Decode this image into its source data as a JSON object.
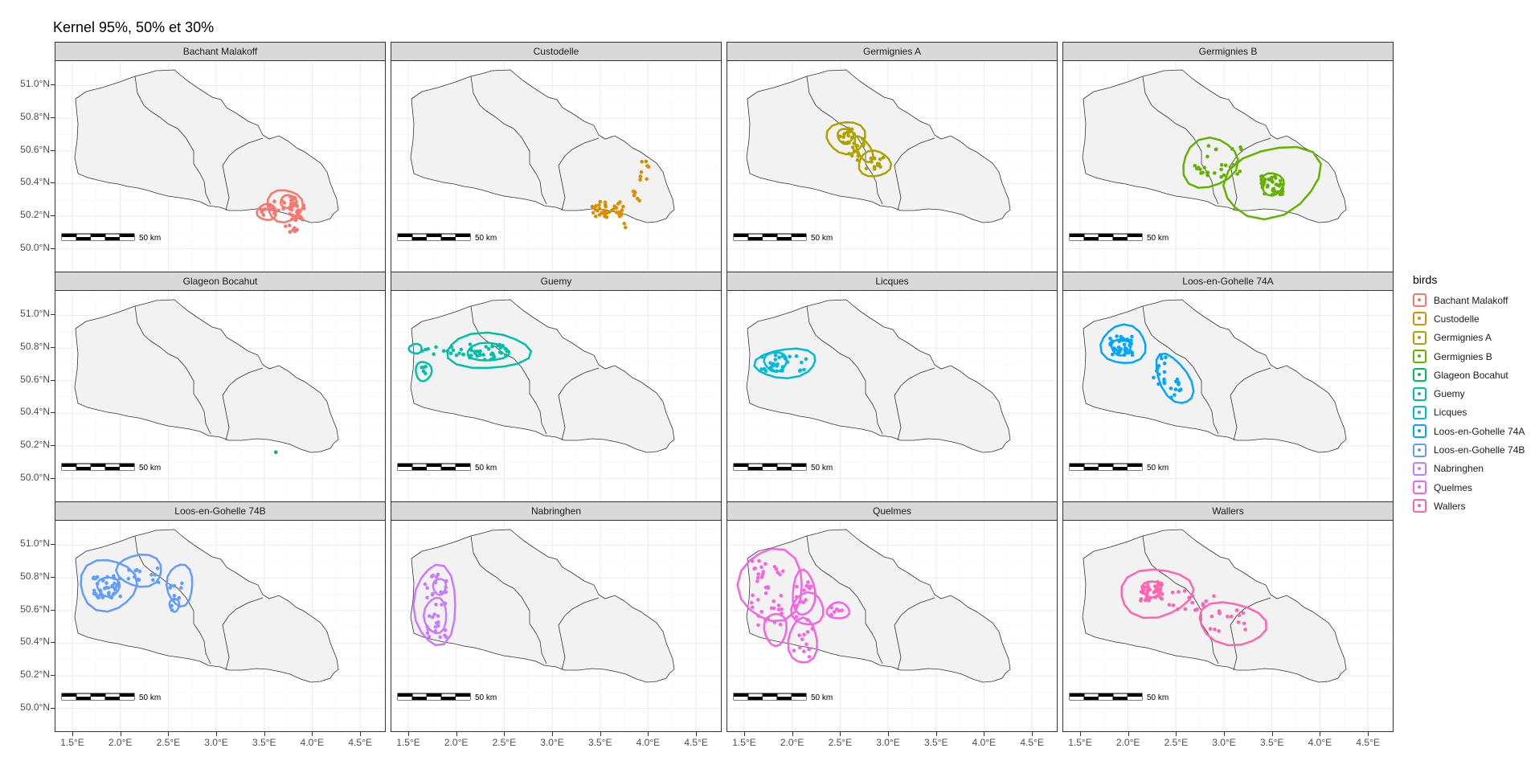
{
  "title": "Kernel 95%, 50% et 30%",
  "axes": {
    "x_ticks": [
      "1.5°E",
      "2.0°E",
      "2.5°E",
      "3.0°E",
      "3.5°E",
      "4.0°E",
      "4.5°E"
    ],
    "y_ticks": [
      "51.0°N",
      "50.8°N",
      "50.6°N",
      "50.4°N",
      "50.2°N",
      "50.0°N"
    ]
  },
  "scale_bar_label": "50 km",
  "legend": {
    "title": "birds",
    "items": [
      {
        "label": "Bachant Malakoff",
        "color": "#F8766D"
      },
      {
        "label": "Custodelle",
        "color": "#DB8E00"
      },
      {
        "label": "Germignies A",
        "color": "#AEA200"
      },
      {
        "label": "Germignies B",
        "color": "#64B200"
      },
      {
        "label": "Glageon Bocahut",
        "color": "#00BD5C"
      },
      {
        "label": "Guemy",
        "color": "#00C1A7"
      },
      {
        "label": "Licques",
        "color": "#00BADE"
      },
      {
        "label": "Loos-en-Gohelle 74A",
        "color": "#00A6FF"
      },
      {
        "label": "Loos-en-Gohelle 74B",
        "color": "#619CFF"
      },
      {
        "label": "Nabringhen",
        "color": "#C77CFF"
      },
      {
        "label": "Quelmes",
        "color": "#F564E3"
      },
      {
        "label": "Wallers",
        "color": "#FF64B0"
      }
    ]
  },
  "panels": [
    {
      "title": "Bachant Malakoff",
      "color": "#F8766D"
    },
    {
      "title": "Custodelle",
      "color": "#DB8E00"
    },
    {
      "title": "Germignies A",
      "color": "#AEA200"
    },
    {
      "title": "Germignies B",
      "color": "#64B200"
    },
    {
      "title": "Glageon Bocahut",
      "color": "#00BD5C"
    },
    {
      "title": "Guemy",
      "color": "#00C1A7"
    },
    {
      "title": "Licques",
      "color": "#00BADE"
    },
    {
      "title": "Loos-en-Gohelle 74A",
      "color": "#00A6FF"
    },
    {
      "title": "Loos-en-Gohelle 74B",
      "color": "#619CFF"
    },
    {
      "title": "Nabringhen",
      "color": "#C77CFF"
    },
    {
      "title": "Quelmes",
      "color": "#F564E3"
    },
    {
      "title": "Wallers",
      "color": "#FF64B0"
    }
  ]
}
